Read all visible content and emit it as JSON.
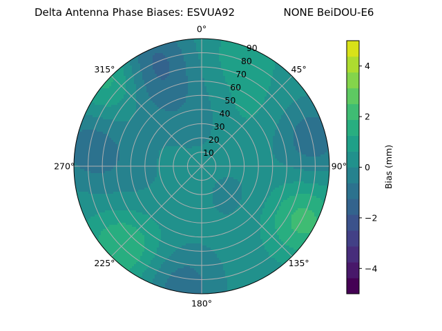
{
  "chart_data": {
    "type": "polar-contour",
    "title": "Delta Antenna Phase Biases: ESVUA92",
    "subtitle": "NONE BeiDOU-E6",
    "angular_ticks": [
      "0°",
      "45°",
      "90°",
      "135°",
      "180°",
      "225°",
      "270°",
      "315°"
    ],
    "radial_ticks": [
      "10",
      "20",
      "30",
      "40",
      "50",
      "60",
      "70",
      "80",
      "90"
    ],
    "radial_range": [
      0,
      90
    ],
    "grid": true,
    "colorbar": {
      "label": "Bias (mm)",
      "range": [
        -5,
        5
      ],
      "ticks": [
        "−4",
        "−2",
        "0",
        "2",
        "4"
      ],
      "levels": [
        -5,
        -4.375,
        -3.75,
        -3.125,
        -2.5,
        -1.875,
        -1.25,
        -0.625,
        0,
        0.625,
        1.25,
        1.875,
        2.5,
        3.125,
        3.75,
        4.375,
        5
      ],
      "colors": [
        "#440154",
        "#48186a",
        "#472d7b",
        "#424086",
        "#3b528b",
        "#33638d",
        "#2c728e",
        "#26828e",
        "#21918c",
        "#1fa088",
        "#28ae80",
        "#3fbc73",
        "#5ec962",
        "#84d44b",
        "#addc30",
        "#d8e219",
        "#fde725"
      ]
    },
    "base_bias_mm": 0.3,
    "regions": [
      {
        "azimuth_deg": 0,
        "zenith_deg": 35,
        "bias_mm": -0.5
      },
      {
        "azimuth_deg": 330,
        "zenith_deg": 60,
        "bias_mm": -0.8
      },
      {
        "azimuth_deg": 20,
        "zenith_deg": 85,
        "bias_mm": 0.6
      },
      {
        "azimuth_deg": 35,
        "zenith_deg": 50,
        "bias_mm": 0.5
      },
      {
        "azimuth_deg": 75,
        "zenith_deg": 80,
        "bias_mm": -1.3
      },
      {
        "azimuth_deg": 118,
        "zenith_deg": 80,
        "bias_mm": 1.8
      },
      {
        "azimuth_deg": 135,
        "zenith_deg": 30,
        "bias_mm": -0.4
      },
      {
        "azimuth_deg": 190,
        "zenith_deg": 85,
        "bias_mm": -1.3
      },
      {
        "azimuth_deg": 225,
        "zenith_deg": 80,
        "bias_mm": 1.6
      },
      {
        "azimuth_deg": 280,
        "zenith_deg": 80,
        "bias_mm": -1.3
      },
      {
        "azimuth_deg": 260,
        "zenith_deg": 50,
        "bias_mm": -0.4
      },
      {
        "azimuth_deg": 315,
        "zenith_deg": 90,
        "bias_mm": 1.5
      },
      {
        "azimuth_deg": 335,
        "zenith_deg": 85,
        "bias_mm": -1.6
      }
    ]
  }
}
